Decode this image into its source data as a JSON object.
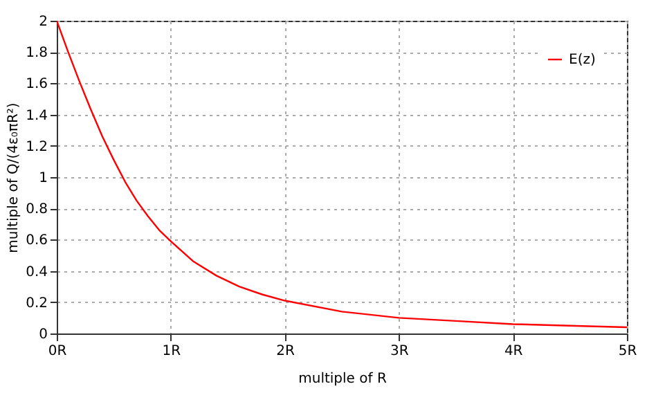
{
  "chart_data": {
    "type": "line",
    "xlabel": "multiple of R",
    "ylabel": "multiple of Q/(4ε₀πR²)",
    "x": [
      0,
      0.1,
      0.2,
      0.3,
      0.4,
      0.5,
      0.6,
      0.7,
      0.8,
      0.9,
      1,
      1.2,
      1.4,
      1.6,
      1.8,
      2,
      2.5,
      3,
      3.5,
      4,
      4.5,
      5
    ],
    "series": [
      {
        "name": "E(z)",
        "color": "#ff0000",
        "values": [
          2,
          1.8,
          1.61,
          1.43,
          1.26,
          1.11,
          0.97,
          0.85,
          0.75,
          0.66,
          0.59,
          0.46,
          0.37,
          0.3,
          0.25,
          0.21,
          0.14,
          0.1,
          0.08,
          0.06,
          0.05,
          0.04
        ]
      }
    ],
    "xlim": [
      0,
      5
    ],
    "xticks": [
      {
        "value": 0,
        "label": "0R"
      },
      {
        "value": 1,
        "label": "1R"
      },
      {
        "value": 2,
        "label": "2R"
      },
      {
        "value": 3,
        "label": "3R"
      },
      {
        "value": 4,
        "label": "4R"
      },
      {
        "value": 5,
        "label": "5R"
      }
    ],
    "ylim": [
      0,
      2
    ],
    "yticks": [
      0,
      0.2,
      0.4,
      0.6,
      0.8,
      1,
      1.2,
      1.4,
      1.6,
      1.8,
      2
    ],
    "grid": true,
    "legend": "top right",
    "line_style": "solid",
    "marker": "none"
  }
}
